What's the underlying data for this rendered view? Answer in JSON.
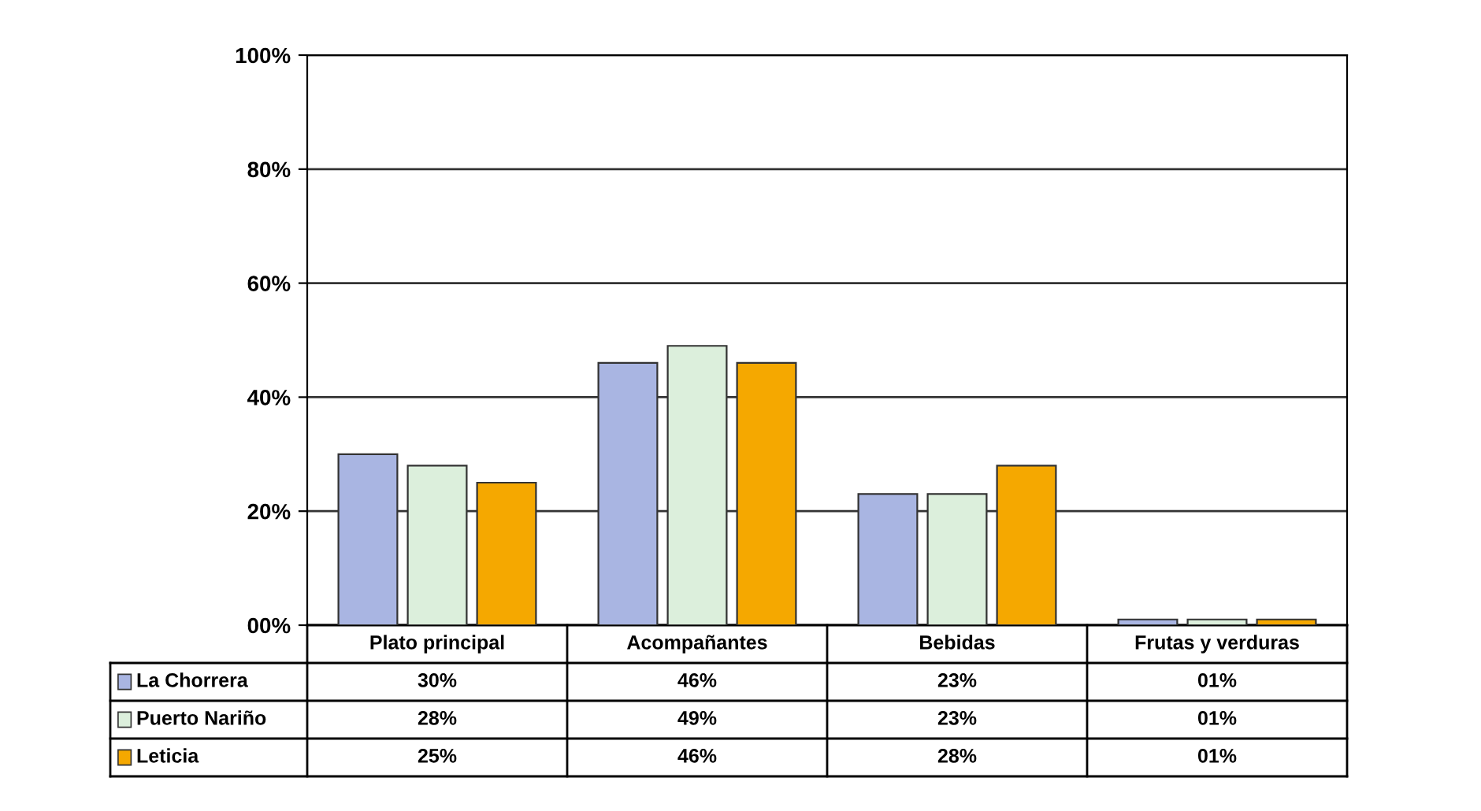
{
  "chart_data": {
    "type": "bar",
    "categories": [
      "Plato principal",
      "Acompañantes",
      "Bebidas",
      "Frutas y verduras"
    ],
    "series": [
      {
        "name": "La Chorrera",
        "color": "#a9b5e2",
        "values": [
          30,
          46,
          23,
          1
        ],
        "value_labels": [
          "30%",
          "46%",
          "23%",
          "01%"
        ]
      },
      {
        "name": "Puerto Nariño",
        "color": "#dcefdc",
        "values": [
          28,
          49,
          23,
          1
        ],
        "value_labels": [
          "28%",
          "49%",
          "23%",
          "01%"
        ]
      },
      {
        "name": "Leticia",
        "color": "#f5a800",
        "values": [
          25,
          46,
          28,
          1
        ],
        "value_labels": [
          "25%",
          "46%",
          "28%",
          "01%"
        ]
      }
    ],
    "ylim": [
      0,
      100
    ],
    "yticks": [
      {
        "value": 0,
        "label": "00%"
      },
      {
        "value": 20,
        "label": "20%"
      },
      {
        "value": 40,
        "label": "40%"
      },
      {
        "value": 60,
        "label": "60%"
      },
      {
        "value": 80,
        "label": "80%"
      },
      {
        "value": 100,
        "label": "100%"
      }
    ],
    "grid": "y",
    "legend": "bottom left"
  }
}
